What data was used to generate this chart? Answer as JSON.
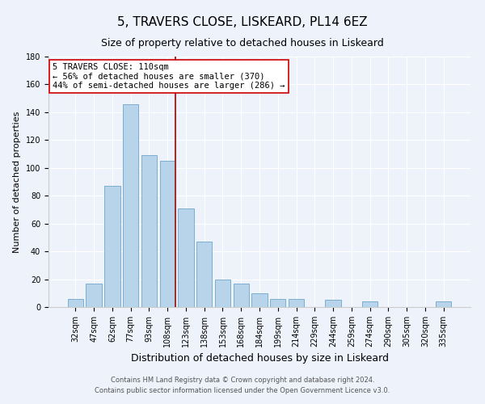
{
  "title": "5, TRAVERS CLOSE, LISKEARD, PL14 6EZ",
  "subtitle": "Size of property relative to detached houses in Liskeard",
  "xlabel": "Distribution of detached houses by size in Liskeard",
  "ylabel": "Number of detached properties",
  "bar_labels": [
    "32sqm",
    "47sqm",
    "62sqm",
    "77sqm",
    "93sqm",
    "108sqm",
    "123sqm",
    "138sqm",
    "153sqm",
    "168sqm",
    "184sqm",
    "199sqm",
    "214sqm",
    "229sqm",
    "244sqm",
    "259sqm",
    "274sqm",
    "290sqm",
    "305sqm",
    "320sqm",
    "335sqm"
  ],
  "bar_values": [
    6,
    17,
    87,
    146,
    109,
    105,
    71,
    47,
    20,
    17,
    10,
    6,
    6,
    0,
    5,
    0,
    4,
    0,
    0,
    0,
    4
  ],
  "bar_color": "#b8d4ea",
  "bar_edge_color": "#7aaed0",
  "ylim": [
    0,
    180
  ],
  "yticks": [
    0,
    20,
    40,
    60,
    80,
    100,
    120,
    140,
    160,
    180
  ],
  "vline_color": "#993333",
  "annotation_text": "5 TRAVERS CLOSE: 110sqm\n← 56% of detached houses are smaller (370)\n44% of semi-detached houses are larger (286) →",
  "annotation_box_color": "#ffffff",
  "annotation_box_edge": "#cc0000",
  "footer_line1": "Contains HM Land Registry data © Crown copyright and database right 2024.",
  "footer_line2": "Contains public sector information licensed under the Open Government Licence v3.0.",
  "bg_color": "#eef2fb",
  "title_fontsize": 11,
  "subtitle_fontsize": 9,
  "xlabel_fontsize": 9,
  "ylabel_fontsize": 8,
  "tick_fontsize": 7,
  "footer_fontsize": 6,
  "annotation_fontsize": 7.5
}
